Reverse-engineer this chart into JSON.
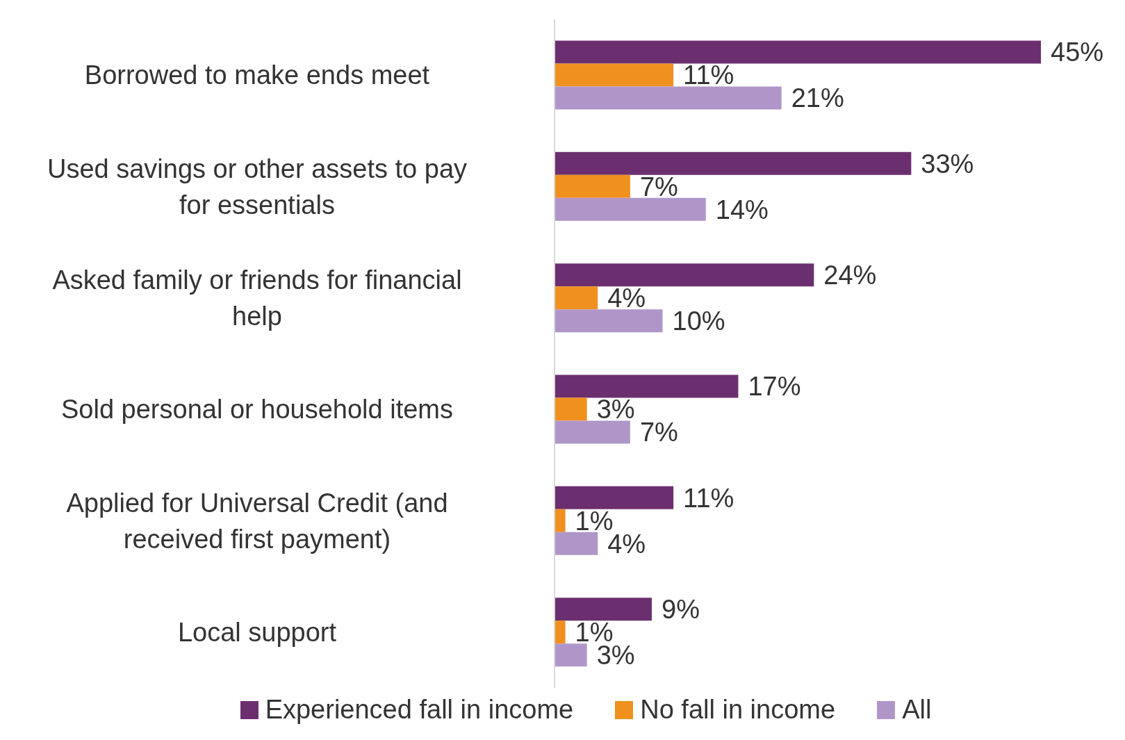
{
  "chart_data": {
    "type": "bar",
    "orientation": "horizontal",
    "categories": [
      "Borrowed to make ends meet",
      "Used savings or other assets to pay for essentials",
      "Asked family or friends for financial help",
      "Sold personal or household items",
      "Applied for Universal Credit (and received first payment)",
      "Local support"
    ],
    "series": [
      {
        "name": "Experienced fall in income",
        "color": "#6b2f6f",
        "values": [
          45,
          33,
          24,
          17,
          11,
          9
        ],
        "value_labels": [
          "45%",
          "33%",
          "24%",
          "17%",
          "11%",
          "9%"
        ]
      },
      {
        "name": "No fall in income",
        "color": "#f0901e",
        "values": [
          11,
          7,
          4,
          3,
          1,
          1
        ],
        "value_labels": [
          "11%",
          "7%",
          "4%",
          "3%",
          "1%",
          "1%"
        ]
      },
      {
        "name": "All",
        "color": "#b096c8",
        "values": [
          21,
          14,
          10,
          7,
          4,
          3
        ],
        "value_labels": [
          "21%",
          "14%",
          "10%",
          "7%",
          "4%",
          "3%"
        ]
      }
    ],
    "legend": "bottom",
    "grid": false
  }
}
